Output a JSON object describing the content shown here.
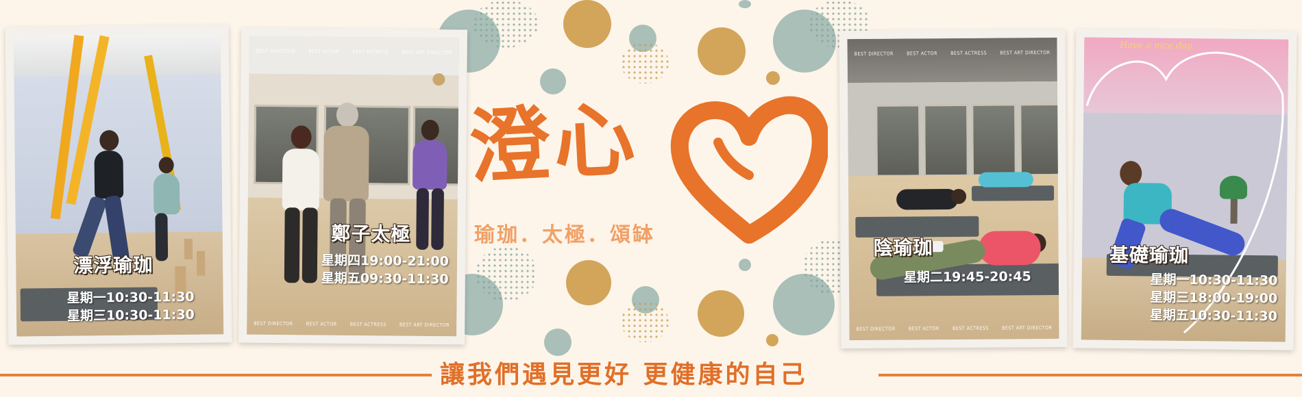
{
  "brand": {
    "title": "澄心",
    "subtitle": "瑜珈．太極．頌缽",
    "tagline": "讓我們遇見更好 更健康的自己",
    "accent_color": "#e8732a",
    "heart_icon": "brush-heart-icon"
  },
  "credits": [
    "BEST DIRECTOR",
    "BEST ACTOR",
    "BEST ACTRESS",
    "BEST ART DIRECTOR"
  ],
  "classes": [
    {
      "name": "漂浮瑜珈",
      "schedule": [
        "星期一10:30-11:30",
        "星期三10:30-11:30"
      ]
    },
    {
      "name": "鄭子太極",
      "schedule": [
        "星期四19:00-21:00",
        "星期五09:30-11:30"
      ]
    },
    {
      "name": "陰瑜珈",
      "schedule": [
        "星期二19:45-20:45"
      ]
    },
    {
      "name": "基礎瑜珈",
      "schedule": [
        "星期一10:30-11:30",
        "星期三18:00-19:00",
        "星期五10:30-11:30"
      ],
      "overlay": "Have a nice day."
    }
  ]
}
